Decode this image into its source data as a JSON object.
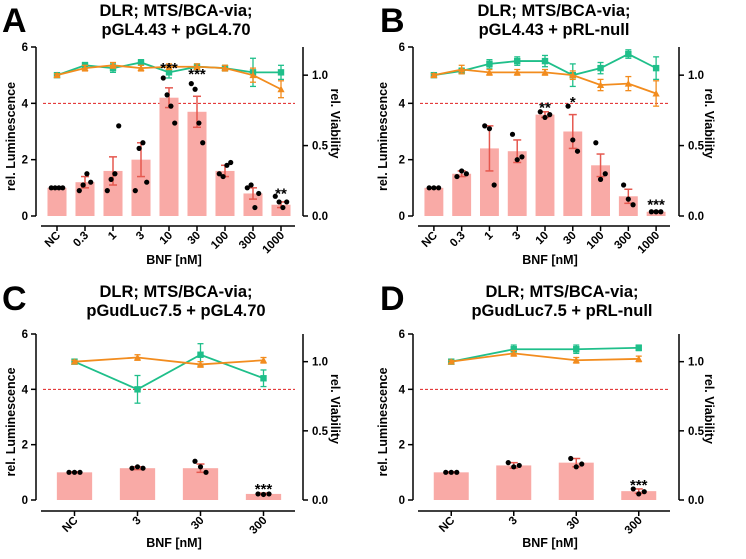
{
  "colors": {
    "bar": "#f9aaa6",
    "bar_error": "#e5584f",
    "green": "#1fbf8a",
    "orange": "#f28c1e",
    "dots": "#000000",
    "ref_line": "#e02020"
  },
  "chart_data": [
    {
      "panel": "A",
      "type": "bar",
      "title_lines": [
        "DLR; MTS/BCA-via;",
        "pGL4.43 + pGL4.70"
      ],
      "xlabel": "BNF [nM]",
      "ylabel": "rel. Luminescence",
      "y2label": "rel. Viability",
      "categories": [
        "NC",
        "0.3",
        "1",
        "3",
        "10",
        "30",
        "100",
        "300",
        "1000"
      ],
      "ylim": [
        0,
        6
      ],
      "yticks": [
        "0",
        "2",
        "4",
        "6"
      ],
      "y2lim": [
        0,
        1.2
      ],
      "y2ticks": [
        "0.0",
        "0.5",
        "1.0"
      ],
      "ref_line_y": 4,
      "series": [
        {
          "name": "rel. Luminescence",
          "kind": "bar",
          "values": [
            1.0,
            1.2,
            1.6,
            2.0,
            4.2,
            3.7,
            1.6,
            0.8,
            0.4
          ],
          "errors": [
            0.02,
            0.2,
            0.5,
            0.6,
            0.35,
            0.55,
            0.2,
            0.2,
            0.1
          ]
        },
        {
          "name": "viability green",
          "kind": "line",
          "axis": "right",
          "values": [
            1.0,
            1.07,
            1.05,
            1.09,
            1.02,
            1.06,
            1.05,
            1.02,
            1.02
          ],
          "errors": [
            0.01,
            0.02,
            0.03,
            0.02,
            0.04,
            0.02,
            0.02,
            0.1,
            0.05
          ]
        },
        {
          "name": "viability orange",
          "kind": "line",
          "axis": "right",
          "values": [
            1.0,
            1.05,
            1.07,
            1.05,
            1.06,
            1.06,
            1.05,
            1.0,
            0.9
          ],
          "errors": [
            0.01,
            0.02,
            0.02,
            0.02,
            0.02,
            0.02,
            0.02,
            0.05,
            0.06
          ]
        }
      ],
      "points": [
        [
          1,
          1,
          1,
          1
        ],
        [
          0.9,
          1.1,
          1.5,
          1.2
        ],
        [
          0.9,
          1.3,
          1.5,
          3.2
        ],
        [
          0.9,
          2.4,
          2.6,
          1.2
        ],
        [
          4.9,
          4.3,
          3.9,
          3.3
        ],
        [
          4.7,
          4.5,
          3.3,
          2.6
        ],
        [
          1.5,
          1.4,
          1.8,
          1.9
        ],
        [
          1.0,
          1.1,
          0.3,
          0.8
        ],
        [
          0.7,
          0.5,
          0.3,
          0.5
        ]
      ],
      "annotations": [
        {
          "index": 4,
          "text": "***",
          "y": 5.25
        },
        {
          "index": 5,
          "text": "***",
          "y": 5.05
        },
        {
          "index": 8,
          "text": "**",
          "y": 0.8
        }
      ]
    },
    {
      "panel": "B",
      "type": "bar",
      "title_lines": [
        "DLR; MTS/BCA-via;",
        "pGL4.43 + pRL-null"
      ],
      "xlabel": "BNF [nM]",
      "ylabel": "rel. Luminescence",
      "y2label": "rel. Viability",
      "categories": [
        "NC",
        "0.3",
        "1",
        "3",
        "10",
        "30",
        "100",
        "300",
        "1000"
      ],
      "ylim": [
        0,
        6
      ],
      "yticks": [
        "0",
        "2",
        "4",
        "6"
      ],
      "y2lim": [
        0,
        1.2
      ],
      "y2ticks": [
        "0.0",
        "0.5",
        "1.0"
      ],
      "ref_line_y": 4,
      "series": [
        {
          "name": "rel. Luminescence",
          "kind": "bar",
          "values": [
            1.0,
            1.5,
            2.4,
            2.3,
            3.6,
            3.0,
            1.8,
            0.7,
            0.15
          ],
          "errors": [
            0.02,
            0.1,
            0.8,
            0.4,
            0.1,
            0.6,
            0.4,
            0.25,
            0.03
          ]
        },
        {
          "name": "viability green",
          "kind": "line",
          "axis": "right",
          "values": [
            1.0,
            1.03,
            1.08,
            1.1,
            1.1,
            1.0,
            1.05,
            1.15,
            1.05
          ],
          "errors": [
            0.01,
            0.02,
            0.03,
            0.03,
            0.04,
            0.08,
            0.04,
            0.03,
            0.08
          ]
        },
        {
          "name": "viability orange",
          "kind": "line",
          "axis": "right",
          "values": [
            1.0,
            1.04,
            1.02,
            1.02,
            1.02,
            1.0,
            0.93,
            0.94,
            0.87
          ],
          "errors": [
            0.01,
            0.03,
            0.02,
            0.02,
            0.02,
            0.03,
            0.04,
            0.05,
            0.09
          ]
        }
      ],
      "points": [
        [
          1,
          1,
          1
        ],
        [
          1.4,
          1.6,
          1.5
        ],
        [
          3.2,
          3.1,
          1.1
        ],
        [
          2.9,
          2.0,
          2.1
        ],
        [
          3.7,
          3.5,
          3.6
        ],
        [
          3.9,
          2.7,
          2.3
        ],
        [
          2.6,
          1.3,
          1.5
        ],
        [
          1.1,
          0.6,
          0.4
        ],
        [
          0.15,
          0.15,
          0.15
        ]
      ],
      "annotations": [
        {
          "index": 4,
          "text": "**",
          "y": 3.85
        },
        {
          "index": 5,
          "text": "*",
          "y": 4.05
        },
        {
          "index": 8,
          "text": "***",
          "y": 0.4
        }
      ]
    },
    {
      "panel": "C",
      "type": "bar",
      "title_lines": [
        "DLR; MTS/BCA-via;",
        "pGudLuc7.5 + pGL4.70"
      ],
      "xlabel": "BNF [nM]",
      "ylabel": "rel. Luminescence",
      "y2label": "rel. Viability",
      "categories": [
        "NC",
        "3",
        "30",
        "300"
      ],
      "ylim": [
        0,
        6
      ],
      "yticks": [
        "0",
        "2",
        "4",
        "6"
      ],
      "y2lim": [
        0,
        1.2
      ],
      "y2ticks": [
        "0.0",
        "0.5",
        "1.0"
      ],
      "ref_line_y": 4,
      "series": [
        {
          "name": "rel. Luminescence",
          "kind": "bar",
          "values": [
            1.0,
            1.15,
            1.15,
            0.22
          ],
          "errors": [
            0.02,
            0.05,
            0.15,
            0.03
          ]
        },
        {
          "name": "viability green",
          "kind": "line",
          "axis": "right",
          "values": [
            1.0,
            0.8,
            1.05,
            0.88
          ],
          "errors": [
            0.01,
            0.1,
            0.08,
            0.06
          ]
        },
        {
          "name": "viability orange",
          "kind": "line",
          "axis": "right",
          "values": [
            1.0,
            1.03,
            0.98,
            1.01
          ],
          "errors": [
            0.01,
            0.02,
            0.02,
            0.02
          ]
        }
      ],
      "points": [
        [
          1,
          1,
          1
        ],
        [
          1.15,
          1.2,
          1.15
        ],
        [
          1.4,
          1.2,
          1.0
        ],
        [
          0.22,
          0.2,
          0.22
        ]
      ],
      "annotations": [
        {
          "index": 3,
          "text": "***",
          "y": 0.4
        }
      ]
    },
    {
      "panel": "D",
      "type": "bar",
      "title_lines": [
        "DLR; MTS/BCA-via;",
        "pGudLuc7.5 + pRL-null"
      ],
      "xlabel": "BNF [nM]",
      "ylabel": "rel. Luminescence",
      "y2label": "rel. Viability",
      "categories": [
        "NC",
        "3",
        "30",
        "300"
      ],
      "ylim": [
        0,
        6
      ],
      "yticks": [
        "0",
        "2",
        "4",
        "6"
      ],
      "y2lim": [
        0,
        1.2
      ],
      "y2ticks": [
        "0.0",
        "0.5",
        "1.0"
      ],
      "ref_line_y": 4,
      "series": [
        {
          "name": "rel. Luminescence",
          "kind": "bar",
          "values": [
            1.0,
            1.25,
            1.35,
            0.32
          ],
          "errors": [
            0.02,
            0.1,
            0.15,
            0.08
          ]
        },
        {
          "name": "viability green",
          "kind": "line",
          "axis": "right",
          "values": [
            1.0,
            1.09,
            1.09,
            1.1
          ],
          "errors": [
            0.01,
            0.03,
            0.03,
            0.02
          ]
        },
        {
          "name": "viability orange",
          "kind": "line",
          "axis": "right",
          "values": [
            1.0,
            1.06,
            1.01,
            1.02
          ],
          "errors": [
            0.01,
            0.02,
            0.02,
            0.02
          ]
        }
      ],
      "points": [
        [
          1,
          1,
          1
        ],
        [
          1.35,
          1.2,
          1.25
        ],
        [
          1.5,
          1.2,
          1.3
        ],
        [
          0.4,
          0.22,
          0.3
        ]
      ],
      "annotations": [
        {
          "index": 3,
          "text": "***",
          "y": 0.55
        }
      ]
    }
  ]
}
